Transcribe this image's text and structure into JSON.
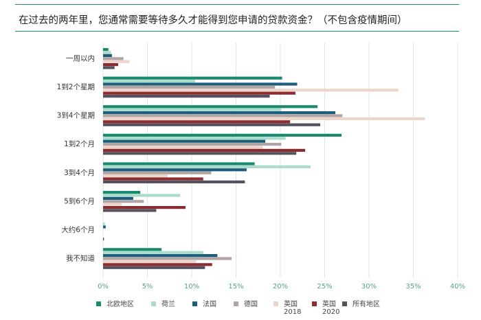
{
  "header": {
    "title": "在过去的两年里，您通常需要等待多久才能得到您申请的贷款资金？（不包含疫情期间）"
  },
  "colors": {
    "rule": "#1a8a75",
    "grid": "#d8e8e3",
    "axis_text": "#5aa08c"
  },
  "chart_data": {
    "type": "bar",
    "orientation": "horizontal",
    "title": "在过去的两年里，您通常需要等待多久才能得到您申请的贷款资金？（不包含疫情期间）",
    "categories": [
      "一周以内",
      "1到2个星期",
      "3到4个星期",
      "1到2个月",
      "3到4个月",
      "5到6个月",
      "大约6个月",
      "我不知道"
    ],
    "xlim": [
      0,
      40
    ],
    "xticks": [
      0,
      5,
      10,
      15,
      20,
      25,
      30,
      35,
      40
    ],
    "xtick_labels": [
      "0%",
      "5%",
      "10%",
      "15%",
      "20%",
      "25%",
      "30%",
      "35%",
      "40%"
    ],
    "grid": true,
    "legend_position": "bottom",
    "series": [
      {
        "name": "北欧地区",
        "color": "#1a8a6e",
        "values": [
          0.6,
          20.2,
          24.2,
          26.9,
          17.1,
          4.2,
          0,
          6.6
        ]
      },
      {
        "name": "荷兰",
        "color": "#a9dccb",
        "values": [
          0.9,
          10.4,
          20.1,
          20.6,
          23.4,
          8.7,
          0.2,
          11.3
        ]
      },
      {
        "name": "法国",
        "color": "#1c5e7c",
        "values": [
          1.0,
          21.9,
          26.2,
          18.3,
          16.2,
          3.4,
          0.3,
          12.9
        ]
      },
      {
        "name": "德国",
        "color": "#b0a4a4",
        "values": [
          2.3,
          19.4,
          27.0,
          20.1,
          12.2,
          4.6,
          0,
          14.5
        ]
      },
      {
        "name": [
          "英国",
          "2018"
        ],
        "color": "#edd5cc",
        "values": [
          3.0,
          33.3,
          36.3,
          18.0,
          7.3,
          2.1,
          0,
          10.5
        ]
      },
      {
        "name": [
          "英国",
          "2020"
        ],
        "color": "#8c2b30",
        "values": [
          1.7,
          21.7,
          21.1,
          22.8,
          11.3,
          9.3,
          0,
          12.3
        ]
      },
      {
        "name": "所有地区",
        "color": "#55525e",
        "values": [
          1.3,
          18.8,
          24.5,
          21.8,
          16.0,
          6.0,
          0.1,
          11.5
        ]
      }
    ]
  }
}
